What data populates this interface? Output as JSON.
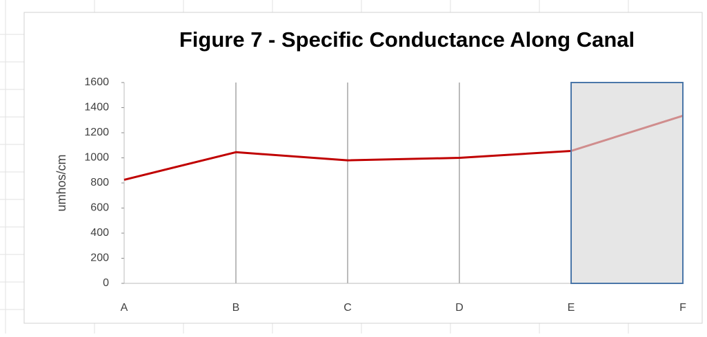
{
  "chart_data": {
    "type": "line",
    "title": "Figure 7 - Specific Conductance  Along Canal",
    "y_label": "umhos/cm",
    "categories": [
      "A",
      "B",
      "C",
      "D",
      "E",
      "F"
    ],
    "series": [
      {
        "name": "Specific Conductance",
        "color": "#c00000",
        "values": [
          825,
          1045,
          980,
          1000,
          1055,
          1335
        ]
      }
    ],
    "ylim": [
      0,
      1600
    ],
    "yticks": [
      0,
      200,
      400,
      600,
      800,
      1000,
      1200,
      1400,
      1600
    ],
    "grid": true
  }
}
